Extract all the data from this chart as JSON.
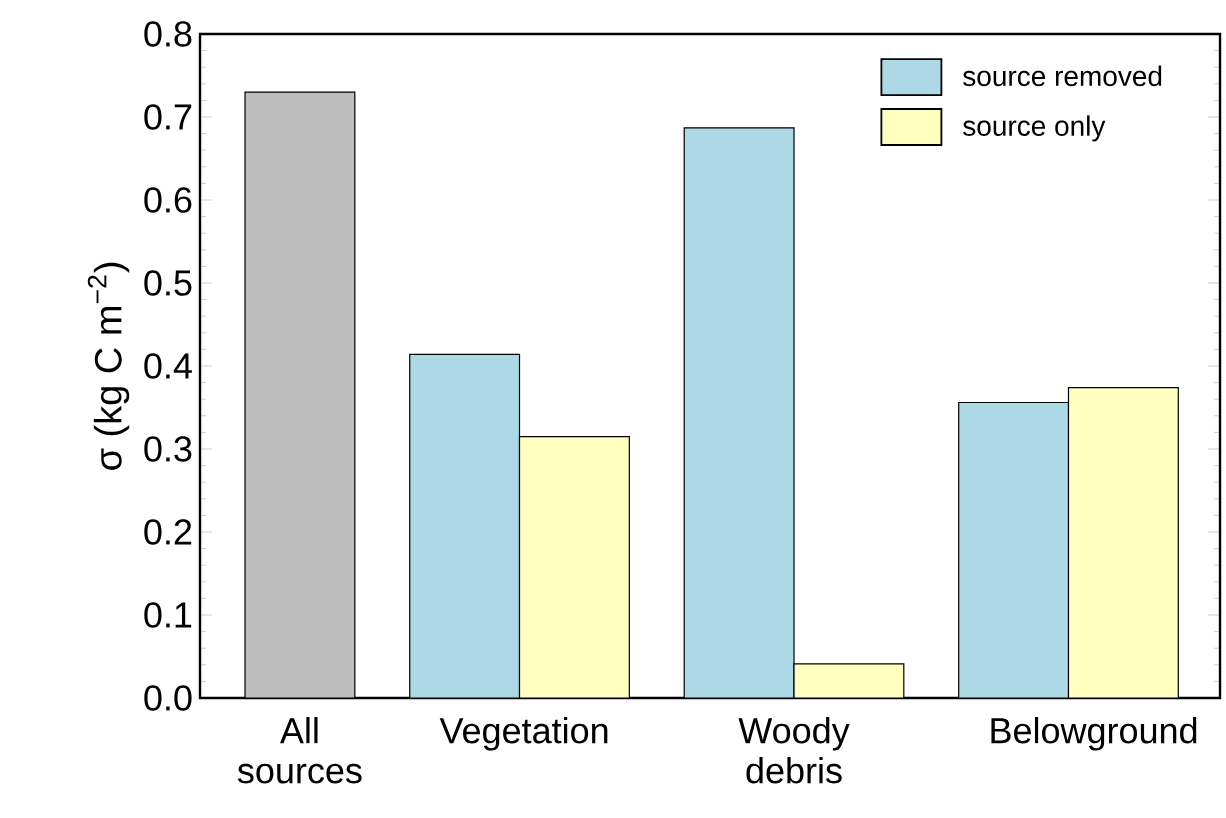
{
  "chart_data": {
    "type": "bar",
    "ylabel": "σ (kg C m$^{−2}$)",
    "categories": [
      "All sources",
      "Vegetation",
      "Woody debris",
      "Belowground"
    ],
    "series": [
      {
        "color": "#bebebe",
        "values": [
          0.73,
          null,
          null,
          null
        ]
      },
      {
        "name": "source removed",
        "color": "#add8e6",
        "values": [
          null,
          0.414,
          0.687,
          0.356
        ]
      },
      {
        "name": "source only",
        "color": "#ffffc0",
        "values": [
          null,
          0.315,
          0.041,
          0.374
        ]
      }
    ],
    "ylim": [
      0,
      0.8
    ],
    "yticks": [
      {
        "value": 0,
        "label": "0.0"
      },
      0.1,
      0.2,
      0.3,
      0.4,
      0.5,
      0.6,
      0.7,
      0.8
    ],
    "legend": "top right",
    "grid": false
  }
}
